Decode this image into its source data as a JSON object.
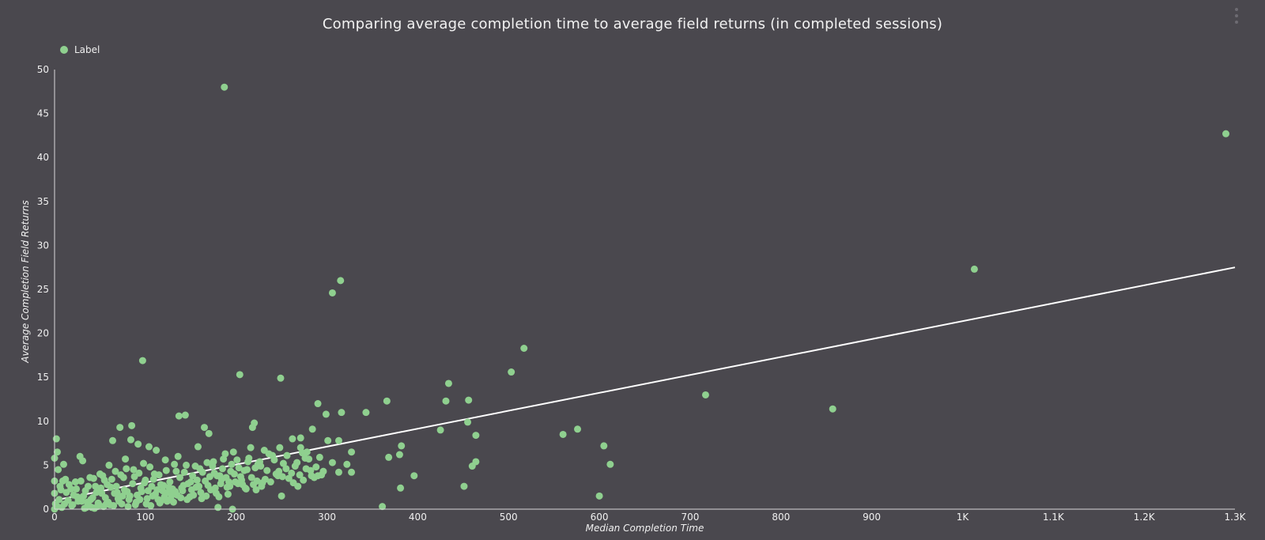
{
  "chart_data": {
    "type": "scatter",
    "title": "Comparing average completion time to average field returns (in completed sessions)",
    "xlabel": "Median Completion Time",
    "ylabel": "Average Completion Field Returns",
    "xlim": [
      0,
      1300
    ],
    "ylim": [
      0,
      50
    ],
    "x_ticks": [
      "0",
      "100",
      "200",
      "300",
      "400",
      "500",
      "600",
      "700",
      "800",
      "900",
      "1K",
      "1.1K",
      "1.2K",
      "1.3K"
    ],
    "y_ticks": [
      "0",
      "5",
      "10",
      "15",
      "20",
      "25",
      "30",
      "35",
      "40",
      "45",
      "50"
    ],
    "legend": {
      "position": "top-left",
      "entries": [
        "Label"
      ]
    },
    "grid": false,
    "colors": {
      "points": "#8fd08f",
      "trendline": "#ffffff",
      "background": "#4a484e"
    },
    "trendline": {
      "x": [
        0,
        1300
      ],
      "y": [
        1.0,
        27.5
      ]
    },
    "series": [
      {
        "name": "Label",
        "points": [
          [
            187,
            48
          ],
          [
            1290,
            42.7
          ],
          [
            1013,
            27.3
          ],
          [
            315,
            26
          ],
          [
            306,
            24.6
          ],
          [
            517,
            18.3
          ],
          [
            97,
            16.9
          ],
          [
            204,
            15.3
          ],
          [
            249,
            14.9
          ],
          [
            503,
            15.6
          ],
          [
            434,
            14.3
          ],
          [
            717,
            13
          ],
          [
            857,
            11.4
          ],
          [
            366,
            12.3
          ],
          [
            431,
            12.3
          ],
          [
            456,
            12.4
          ],
          [
            290,
            12
          ],
          [
            343,
            11
          ],
          [
            316,
            11
          ],
          [
            299,
            10.8
          ],
          [
            144,
            10.7
          ],
          [
            137,
            10.6
          ],
          [
            455,
            9.9
          ],
          [
            425,
            9
          ],
          [
            576,
            9.1
          ],
          [
            560,
            8.5
          ],
          [
            464,
            8.4
          ],
          [
            605,
            7.2
          ],
          [
            612,
            5.1
          ],
          [
            600,
            1.5
          ],
          [
            451,
            2.6
          ],
          [
            464,
            5.4
          ],
          [
            460,
            4.9
          ],
          [
            396,
            3.8
          ],
          [
            381,
            2.4
          ],
          [
            380,
            6.2
          ],
          [
            368,
            5.9
          ],
          [
            382,
            7.2
          ],
          [
            361,
            0.3
          ],
          [
            327,
            6.5
          ],
          [
            322,
            5.1
          ],
          [
            327,
            4.2
          ],
          [
            313,
            4.2
          ],
          [
            313,
            7.8
          ],
          [
            301,
            7.8
          ],
          [
            290,
            3.8
          ],
          [
            284,
            9.1
          ],
          [
            278,
            6.5
          ],
          [
            271,
            8.1
          ],
          [
            271,
            7
          ],
          [
            262,
            8
          ],
          [
            255,
            4.6
          ],
          [
            250,
            1.5
          ],
          [
            248,
            7
          ],
          [
            246,
            3.8
          ],
          [
            240,
            6.1
          ],
          [
            229,
            3
          ],
          [
            224,
            5.1
          ],
          [
            220,
            9.8
          ],
          [
            218,
            9.3
          ],
          [
            216,
            7
          ],
          [
            214,
            5.8
          ],
          [
            210,
            2.4
          ],
          [
            206,
            3.3
          ],
          [
            203,
            4.7
          ],
          [
            197,
            6.5
          ],
          [
            196,
            0
          ],
          [
            192,
            3.1
          ],
          [
            188,
            6.3
          ],
          [
            182,
            3.8
          ],
          [
            180,
            0.2
          ],
          [
            175,
            5.4
          ],
          [
            170,
            8.6
          ],
          [
            165,
            9.3
          ],
          [
            158,
            7.1
          ],
          [
            155,
            4.9
          ],
          [
            150,
            3.1
          ],
          [
            145,
            5
          ],
          [
            141,
            2.1
          ],
          [
            136,
            6
          ],
          [
            134,
            4.3
          ],
          [
            128,
            1.2
          ],
          [
            122,
            5.6
          ],
          [
            117,
            2.8
          ],
          [
            112,
            6.7
          ],
          [
            110,
            4
          ],
          [
            108,
            1.5
          ],
          [
            104,
            7.1
          ],
          [
            100,
            3.3
          ],
          [
            98,
            5.2
          ],
          [
            95,
            2.4
          ],
          [
            92,
            7.4
          ],
          [
            90,
            0.8
          ],
          [
            87,
            4.5
          ],
          [
            85,
            9.5
          ],
          [
            84,
            7.9
          ],
          [
            80,
            2
          ],
          [
            78,
            5.7
          ],
          [
            76,
            3.6
          ],
          [
            72,
            9.3
          ],
          [
            70,
            1.2
          ],
          [
            67,
            4.3
          ],
          [
            64,
            7.8
          ],
          [
            62,
            2.5
          ],
          [
            60,
            5
          ],
          [
            57,
            0.6
          ],
          [
            55,
            3.3
          ],
          [
            52,
            1.8
          ],
          [
            50,
            4
          ],
          [
            47,
            0.3
          ],
          [
            45,
            2.6
          ],
          [
            42,
            1.3
          ],
          [
            39,
            3.6
          ],
          [
            36,
            0.8
          ],
          [
            34,
            2.1
          ],
          [
            31,
            5.5
          ],
          [
            28,
            6
          ],
          [
            25,
            1.4
          ],
          [
            23,
            3.1
          ],
          [
            20,
            0.5
          ],
          [
            18,
            2.3
          ],
          [
            15,
            1
          ],
          [
            12,
            3.4
          ],
          [
            10,
            5.1
          ],
          [
            8,
            0.2
          ],
          [
            6,
            2.6
          ],
          [
            4,
            4.5
          ],
          [
            3,
            6.5
          ],
          [
            2,
            8
          ],
          [
            1,
            0.6
          ],
          [
            0,
            3.2
          ],
          [
            0,
            1.8
          ],
          [
            0,
            0
          ],
          [
            0,
            5.8
          ],
          [
            3,
            0.3
          ],
          [
            5,
            1.1
          ],
          [
            7,
            2.2
          ],
          [
            9,
            3.2
          ],
          [
            11,
            0.6
          ],
          [
            13,
            1.9
          ],
          [
            16,
            2.8
          ],
          [
            19,
            0.4
          ],
          [
            21,
            1.6
          ],
          [
            24,
            2.3
          ],
          [
            26,
            0.9
          ],
          [
            29,
            3.2
          ],
          [
            32,
            1.5
          ],
          [
            35,
            0.2
          ],
          [
            37,
            2.6
          ],
          [
            40,
            1.1
          ],
          [
            43,
            3.5
          ],
          [
            46,
            1.9
          ],
          [
            48,
            0.7
          ],
          [
            51,
            2.4
          ],
          [
            53,
            3.8
          ],
          [
            56,
            1.3
          ],
          [
            58,
            2.8
          ],
          [
            61,
            0.5
          ],
          [
            63,
            3.4
          ],
          [
            66,
            1.8
          ],
          [
            68,
            2.6
          ],
          [
            71,
            0.9
          ],
          [
            73,
            3.9
          ],
          [
            75,
            1.5
          ],
          [
            77,
            2.2
          ],
          [
            79,
            4.6
          ],
          [
            82,
            1.1
          ],
          [
            86,
            2.9
          ],
          [
            88,
            3.7
          ],
          [
            91,
            1.6
          ],
          [
            93,
            4.1
          ],
          [
            96,
            2
          ],
          [
            99,
            3
          ],
          [
            102,
            1.2
          ],
          [
            105,
            4.8
          ],
          [
            107,
            2.6
          ],
          [
            109,
            3.4
          ],
          [
            111,
            1.7
          ],
          [
            113,
            2.2
          ],
          [
            115,
            3.9
          ],
          [
            118,
            1
          ],
          [
            120,
            2.7
          ],
          [
            123,
            4.4
          ],
          [
            125,
            1.9
          ],
          [
            127,
            3.1
          ],
          [
            130,
            2.3
          ],
          [
            132,
            5.1
          ],
          [
            135,
            1.6
          ],
          [
            138,
            3.6
          ],
          [
            140,
            2.4
          ],
          [
            143,
            4.2
          ],
          [
            147,
            2.9
          ],
          [
            149,
            1.4
          ],
          [
            152,
            3.8
          ],
          [
            156,
            2.5
          ],
          [
            160,
            4.6
          ],
          [
            162,
            1.2
          ],
          [
            166,
            3.2
          ],
          [
            168,
            5.3
          ],
          [
            172,
            2.2
          ],
          [
            176,
            4.1
          ],
          [
            178,
            1.8
          ],
          [
            184,
            3.4
          ],
          [
            186,
            5.7
          ],
          [
            190,
            2.5
          ],
          [
            194,
            4.3
          ],
          [
            199,
            3.1
          ],
          [
            201,
            5.6
          ],
          [
            207,
            2.8
          ],
          [
            212,
            4.5
          ],
          [
            222,
            2.2
          ],
          [
            227,
            4.9
          ],
          [
            232,
            3.4
          ],
          [
            236,
            6.3
          ],
          [
            244,
            4
          ],
          [
            252,
            5.2
          ],
          [
            258,
            3.5
          ],
          [
            265,
            4.9
          ],
          [
            268,
            2.6
          ],
          [
            274,
            3.3
          ],
          [
            276,
            5.8
          ],
          [
            282,
            4.4
          ],
          [
            286,
            3.6
          ],
          [
            294,
            3.9
          ],
          [
            306,
            5.3
          ],
          [
            30,
            0.9
          ],
          [
            33,
            0.1
          ],
          [
            38,
            0.4
          ],
          [
            41,
            0.2
          ],
          [
            44,
            0.1
          ],
          [
            49,
            0.5
          ],
          [
            54,
            0.3
          ],
          [
            59,
            0.8
          ],
          [
            65,
            0.4
          ],
          [
            69,
            1.9
          ],
          [
            74,
            0.6
          ],
          [
            81,
            0.3
          ],
          [
            83,
            1.5
          ],
          [
            89,
            0.5
          ],
          [
            94,
            1.1
          ],
          [
            101,
            0.6
          ],
          [
            103,
            2.1
          ],
          [
            106,
            0.4
          ],
          [
            114,
            1.1
          ],
          [
            116,
            0.7
          ],
          [
            119,
            2.1
          ],
          [
            121,
            1.4
          ],
          [
            124,
            0.9
          ],
          [
            126,
            2.5
          ],
          [
            129,
            1.6
          ],
          [
            131,
            0.8
          ],
          [
            133,
            2
          ],
          [
            139,
            1.3
          ],
          [
            142,
            2.7
          ],
          [
            146,
            1.1
          ],
          [
            151,
            2.2
          ],
          [
            153,
            1.6
          ],
          [
            157,
            3.3
          ],
          [
            159,
            2.6
          ],
          [
            161,
            1.9
          ],
          [
            163,
            4.2
          ],
          [
            167,
            1.5
          ],
          [
            169,
            2.7
          ],
          [
            171,
            3.7
          ],
          [
            174,
            4.9
          ],
          [
            177,
            2.4
          ],
          [
            179,
            3.8
          ],
          [
            181,
            1.4
          ],
          [
            183,
            2.9
          ],
          [
            185,
            4.6
          ],
          [
            189,
            3.6
          ],
          [
            191,
            1.7
          ],
          [
            193,
            2.6
          ],
          [
            195,
            5.1
          ],
          [
            198,
            4
          ],
          [
            202,
            2.9
          ],
          [
            205,
            3.7
          ],
          [
            209,
            4.4
          ],
          [
            211,
            2.3
          ],
          [
            213,
            5.4
          ],
          [
            217,
            3.6
          ],
          [
            219,
            2.8
          ],
          [
            221,
            4.7
          ],
          [
            223,
            3.2
          ],
          [
            226,
            5.4
          ],
          [
            228,
            2.6
          ],
          [
            231,
            6.7
          ],
          [
            234,
            4.4
          ],
          [
            238,
            3.1
          ],
          [
            242,
            5.6
          ],
          [
            247,
            4.3
          ],
          [
            251,
            3.7
          ],
          [
            256,
            6.1
          ],
          [
            261,
            4.1
          ],
          [
            263,
            3
          ],
          [
            267,
            5.3
          ],
          [
            270,
            3.9
          ],
          [
            273,
            6.4
          ],
          [
            277,
            4.6
          ],
          [
            280,
            5.7
          ],
          [
            283,
            3.8
          ],
          [
            288,
            4.8
          ],
          [
            292,
            5.9
          ],
          [
            296,
            4.3
          ]
        ]
      }
    ]
  }
}
